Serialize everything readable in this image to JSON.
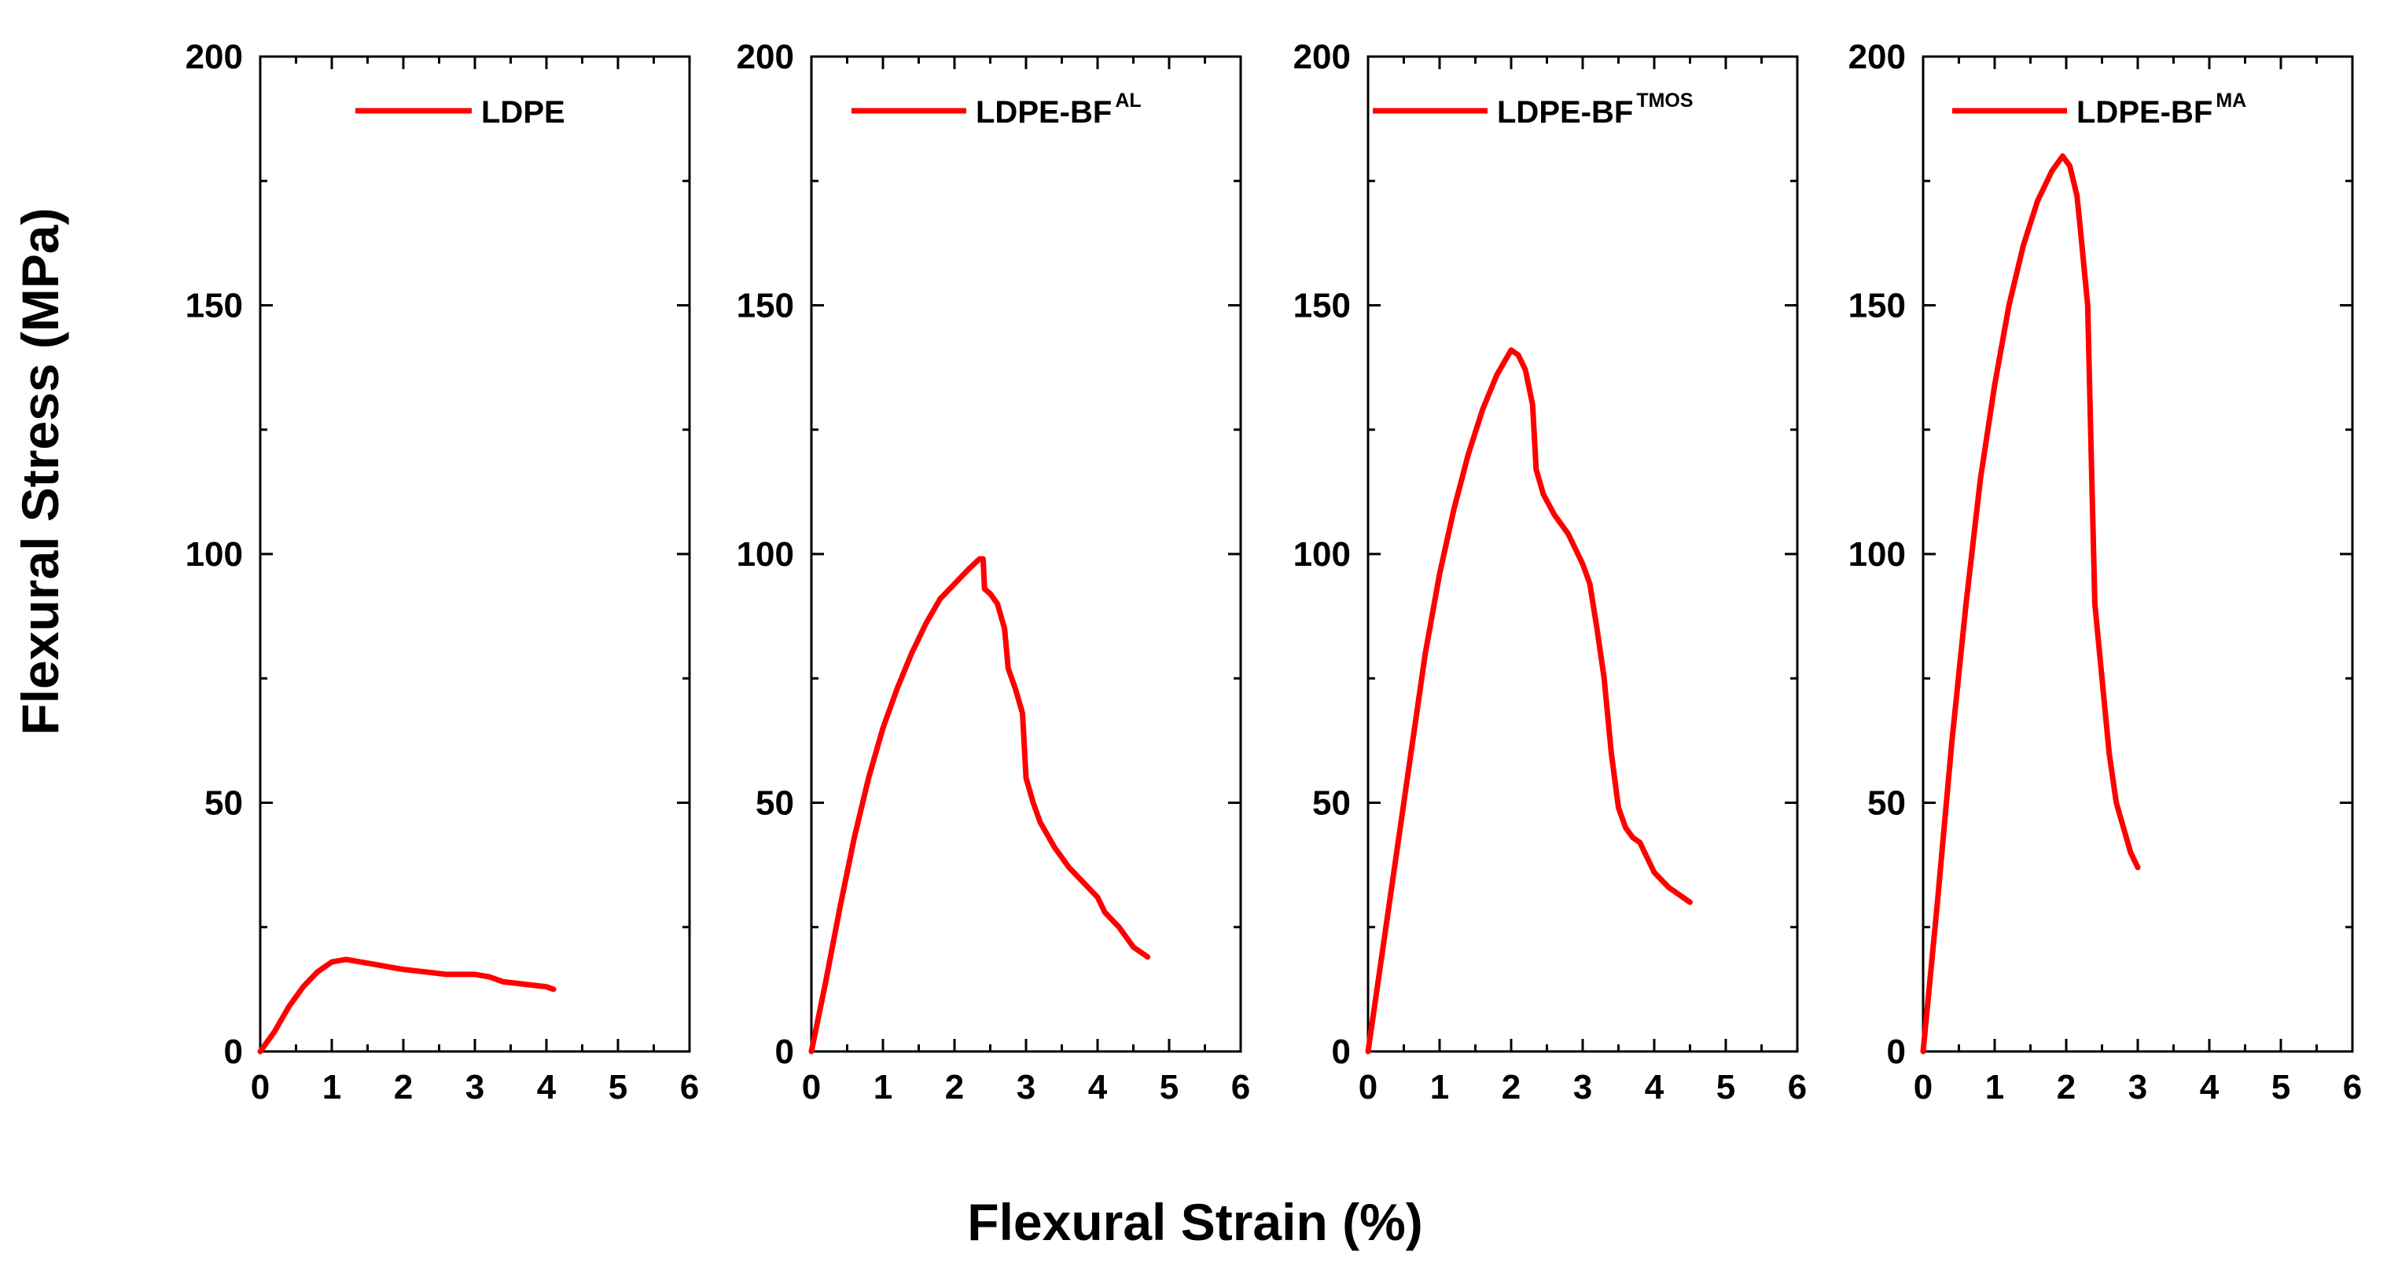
{
  "chart_data": {
    "type": "line",
    "layout": "four side-by-side panels sharing axis titles",
    "xlabel": "Flexural Strain (%)",
    "ylabel": "Flexural Stress (MPa)",
    "xlim": [
      0,
      6
    ],
    "ylim": [
      0,
      200
    ],
    "xticks": [
      "0",
      "1",
      "2",
      "3",
      "4",
      "5",
      "6"
    ],
    "yticks": [
      "0",
      "50",
      "100",
      "150",
      "200"
    ],
    "series_color": "#ff0000",
    "panels": [
      {
        "legend_base": "LDPE",
        "legend_sup": "",
        "points": [
          [
            0,
            0
          ],
          [
            0.2,
            4
          ],
          [
            0.4,
            9
          ],
          [
            0.6,
            13
          ],
          [
            0.8,
            16
          ],
          [
            1.0,
            18
          ],
          [
            1.2,
            18.5
          ],
          [
            1.4,
            18
          ],
          [
            1.6,
            17.5
          ],
          [
            1.8,
            17
          ],
          [
            2.0,
            16.5
          ],
          [
            2.3,
            16
          ],
          [
            2.6,
            15.5
          ],
          [
            3.0,
            15.5
          ],
          [
            3.2,
            15
          ],
          [
            3.4,
            14
          ],
          [
            3.7,
            13.5
          ],
          [
            4.0,
            13
          ],
          [
            4.1,
            12.5
          ]
        ]
      },
      {
        "legend_base": "LDPE-BF",
        "legend_sup": "AL",
        "points": [
          [
            0,
            0
          ],
          [
            0.2,
            14
          ],
          [
            0.4,
            29
          ],
          [
            0.6,
            43
          ],
          [
            0.8,
            55
          ],
          [
            1.0,
            65
          ],
          [
            1.2,
            73
          ],
          [
            1.4,
            80
          ],
          [
            1.6,
            86
          ],
          [
            1.8,
            91
          ],
          [
            2.0,
            94
          ],
          [
            2.2,
            97
          ],
          [
            2.35,
            99
          ],
          [
            2.4,
            99
          ],
          [
            2.42,
            93
          ],
          [
            2.5,
            92
          ],
          [
            2.6,
            90
          ],
          [
            2.7,
            85
          ],
          [
            2.75,
            77
          ],
          [
            2.85,
            73
          ],
          [
            2.95,
            68
          ],
          [
            3.0,
            55
          ],
          [
            3.1,
            50
          ],
          [
            3.2,
            46
          ],
          [
            3.4,
            41
          ],
          [
            3.6,
            37
          ],
          [
            3.8,
            34
          ],
          [
            4.0,
            31
          ],
          [
            4.1,
            28
          ],
          [
            4.3,
            25
          ],
          [
            4.5,
            21
          ],
          [
            4.7,
            19
          ]
        ]
      },
      {
        "legend_base": "LDPE-BF",
        "legend_sup": "TMOS",
        "points": [
          [
            0,
            0
          ],
          [
            0.2,
            20
          ],
          [
            0.4,
            40
          ],
          [
            0.6,
            60
          ],
          [
            0.8,
            80
          ],
          [
            1.0,
            96
          ],
          [
            1.2,
            109
          ],
          [
            1.4,
            120
          ],
          [
            1.6,
            129
          ],
          [
            1.8,
            136
          ],
          [
            2.0,
            141
          ],
          [
            2.1,
            140
          ],
          [
            2.2,
            137
          ],
          [
            2.3,
            130
          ],
          [
            2.35,
            117
          ],
          [
            2.45,
            112
          ],
          [
            2.6,
            108
          ],
          [
            2.8,
            104
          ],
          [
            3.0,
            98
          ],
          [
            3.1,
            94
          ],
          [
            3.2,
            85
          ],
          [
            3.3,
            75
          ],
          [
            3.4,
            60
          ],
          [
            3.5,
            49
          ],
          [
            3.6,
            45
          ],
          [
            3.7,
            43
          ],
          [
            3.8,
            42
          ],
          [
            3.9,
            39
          ],
          [
            4.0,
            36
          ],
          [
            4.2,
            33
          ],
          [
            4.4,
            31
          ],
          [
            4.5,
            30
          ]
        ]
      },
      {
        "legend_base": "LDPE-BF",
        "legend_sup": "MA",
        "points": [
          [
            0,
            0
          ],
          [
            0.2,
            30
          ],
          [
            0.4,
            62
          ],
          [
            0.6,
            90
          ],
          [
            0.8,
            115
          ],
          [
            1.0,
            134
          ],
          [
            1.2,
            150
          ],
          [
            1.4,
            162
          ],
          [
            1.6,
            171
          ],
          [
            1.8,
            177
          ],
          [
            1.95,
            180
          ],
          [
            2.05,
            178
          ],
          [
            2.15,
            172
          ],
          [
            2.2,
            165
          ],
          [
            2.3,
            150
          ],
          [
            2.35,
            120
          ],
          [
            2.4,
            90
          ],
          [
            2.5,
            75
          ],
          [
            2.6,
            60
          ],
          [
            2.7,
            50
          ],
          [
            2.8,
            45
          ],
          [
            2.9,
            40
          ],
          [
            3.0,
            37
          ]
        ]
      }
    ]
  }
}
